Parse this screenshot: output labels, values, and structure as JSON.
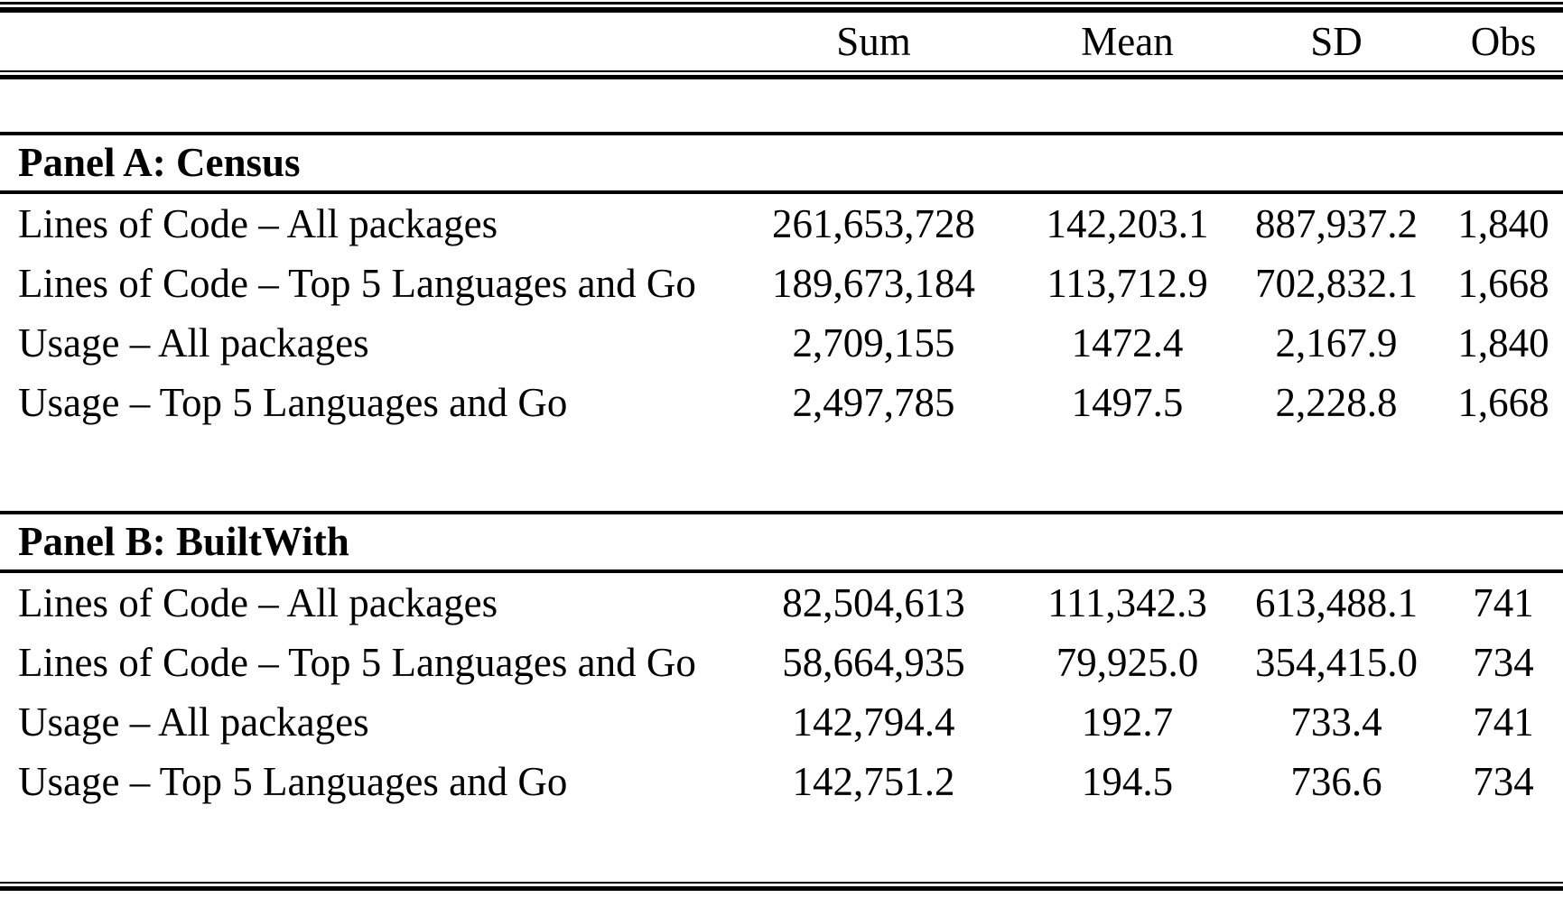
{
  "page": {
    "background_color": "#ffffff",
    "text_color": "#000000"
  },
  "table": {
    "columns": [
      "",
      "Sum",
      "Mean",
      "SD",
      "Obs"
    ],
    "panels": [
      {
        "title": "Panel A: Census",
        "rows": [
          {
            "label": "Lines of Code – All packages",
            "sum": "261,653,728",
            "mean": "142,203.1",
            "sd": "887,937.2",
            "obs": "1,840"
          },
          {
            "label": "Lines of Code – Top 5 Languages and Go",
            "sum": "189,673,184",
            "mean": "113,712.9",
            "sd": "702,832.1",
            "obs": "1,668"
          },
          {
            "label": "Usage – All packages",
            "sum": "2,709,155",
            "mean": "1472.4",
            "sd": "2,167.9",
            "obs": "1,840"
          },
          {
            "label": "Usage – Top 5 Languages and Go",
            "sum": "2,497,785",
            "mean": "1497.5",
            "sd": "2,228.8",
            "obs": "1,668"
          }
        ]
      },
      {
        "title": "Panel B: BuiltWith",
        "rows": [
          {
            "label": "Lines of Code – All packages",
            "sum": "82,504,613",
            "mean": "111,342.3",
            "sd": "613,488.1",
            "obs": "741"
          },
          {
            "label": "Lines of Code – Top 5 Languages and Go",
            "sum": "58,664,935",
            "mean": "79,925.0",
            "sd": "354,415.0",
            "obs": "734"
          },
          {
            "label": "Usage – All packages",
            "sum": "142,794.4",
            "mean": "192.7",
            "sd": "733.4",
            "obs": "741"
          },
          {
            "label": "Usage – Top 5 Languages and Go",
            "sum": "142,751.2",
            "mean": "194.5",
            "sd": "736.6",
            "obs": "734"
          }
        ]
      }
    ]
  }
}
